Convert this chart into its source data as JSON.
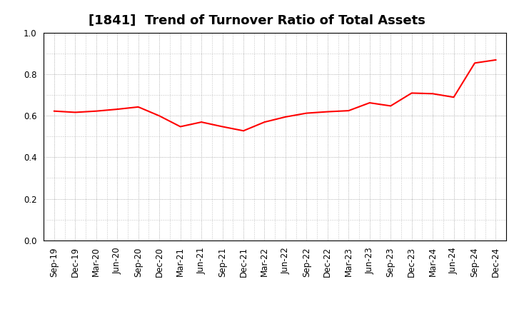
{
  "title": "[1841]  Trend of Turnover Ratio of Total Assets",
  "x_labels": [
    "Sep-19",
    "Dec-19",
    "Mar-20",
    "Jun-20",
    "Sep-20",
    "Dec-20",
    "Mar-21",
    "Jun-21",
    "Sep-21",
    "Dec-21",
    "Mar-22",
    "Jun-22",
    "Sep-22",
    "Dec-22",
    "Mar-23",
    "Jun-23",
    "Sep-23",
    "Dec-23",
    "Mar-24",
    "Jun-24",
    "Sep-24",
    "Dec-24"
  ],
  "values": [
    0.623,
    0.617,
    0.623,
    0.632,
    0.643,
    0.6,
    0.548,
    0.57,
    0.548,
    0.528,
    0.57,
    0.595,
    0.613,
    0.62,
    0.625,
    0.663,
    0.648,
    0.71,
    0.707,
    0.69,
    0.855,
    0.87
  ],
  "line_color": "#ff0000",
  "line_width": 1.5,
  "ylim": [
    0.0,
    1.0
  ],
  "yticks": [
    0.0,
    0.2,
    0.4,
    0.6,
    0.8,
    1.0
  ],
  "background_color": "#ffffff",
  "grid_color": "#999999",
  "title_fontsize": 13,
  "tick_fontsize": 8.5
}
